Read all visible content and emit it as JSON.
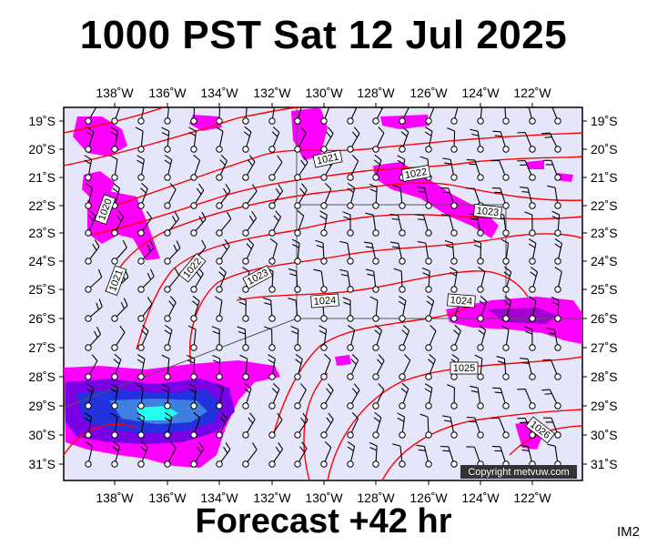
{
  "title": "1000 PST Sat 12 Jul 2025",
  "footer": "Forecast +42 hr",
  "image_code": "IM2",
  "copyright": "Copyright metvuw.com",
  "colors": {
    "background": "#e6e6fa",
    "isobar": "#ff0000",
    "rain_light": "#ff00ff",
    "rain_medium": "#7a00e6",
    "rain_heavy": "#2233dd",
    "rain_extreme": "#22ffee",
    "barb": "#000000"
  },
  "longitudes": [
    "138˚W",
    "136˚W",
    "134˚W",
    "132˚W",
    "130˚W",
    "128˚W",
    "126˚W",
    "124˚W",
    "122˚W"
  ],
  "latitudes": [
    "19˚S",
    "20˚S",
    "21˚S",
    "22˚S",
    "23˚S",
    "24˚S",
    "25˚S",
    "26˚S",
    "27˚S",
    "28˚S",
    "29˚S",
    "30˚S",
    "31˚S"
  ],
  "isobar_labels": [
    "1021",
    "1022",
    "1023",
    "1024",
    "1025",
    "1026"
  ],
  "contour_labels": [
    {
      "text": "1021"
    },
    {
      "text": "1022"
    },
    {
      "text": "1023"
    },
    {
      "text": "1024"
    },
    {
      "text": "1024"
    },
    {
      "text": "1025"
    },
    {
      "text": "1026"
    },
    {
      "text": "1020"
    },
    {
      "text": "1021"
    },
    {
      "text": "1022"
    },
    {
      "text": "1023"
    }
  ]
}
